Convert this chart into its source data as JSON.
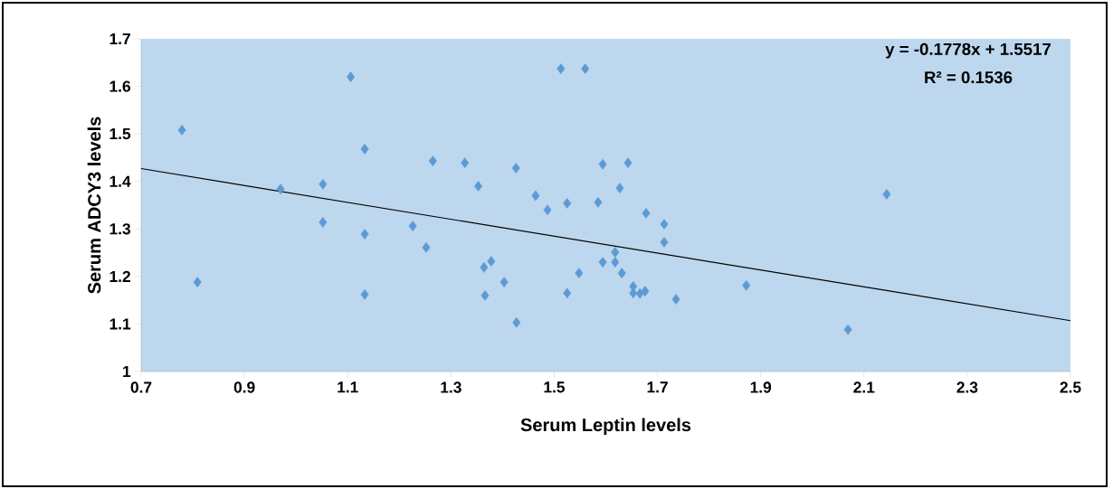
{
  "chart_data": {
    "type": "scatter",
    "xlabel": "Serum Leptin levels",
    "ylabel": "Serum ADCY3  levels",
    "xlim": [
      0.7,
      2.5
    ],
    "xticks": [
      0.7,
      0.9,
      1.1,
      1.3,
      1.5,
      1.7,
      1.9,
      2.1,
      2.3,
      2.5
    ],
    "ylim": [
      1,
      1.7
    ],
    "yticks": [
      1,
      1.1,
      1.2,
      1.3,
      1.4,
      1.5,
      1.6,
      1.7
    ],
    "annotations": [
      "y = -0.1778x + 1.5517",
      "R² = 0.1536"
    ],
    "series": [
      {
        "color": "#5b9bd5",
        "marker": "diamond",
        "x": [
          0.779,
          0.809,
          0.97,
          1.052,
          1.052,
          1.106,
          1.133,
          1.133,
          1.133,
          1.226,
          1.252,
          1.265,
          1.327,
          1.353,
          1.364,
          1.378,
          1.366,
          1.403,
          1.426,
          1.427,
          1.464,
          1.487,
          1.513,
          1.525,
          1.525,
          1.548,
          1.56,
          1.585,
          1.594,
          1.594,
          1.643,
          1.627,
          1.618,
          1.618,
          1.631,
          1.678,
          1.713,
          1.713,
          1.653,
          1.653,
          1.666,
          1.676,
          1.736,
          1.872,
          2.069,
          2.144
        ],
        "values": [
          1.508,
          1.188,
          1.384,
          1.394,
          1.314,
          1.62,
          1.468,
          1.289,
          1.162,
          1.306,
          1.261,
          1.443,
          1.439,
          1.39,
          1.219,
          1.232,
          1.16,
          1.188,
          1.428,
          1.103,
          1.37,
          1.34,
          1.637,
          1.354,
          1.165,
          1.207,
          1.637,
          1.356,
          1.436,
          1.23,
          1.439,
          1.386,
          1.251,
          1.23,
          1.207,
          1.333,
          1.31,
          1.272,
          1.179,
          1.165,
          1.164,
          1.169,
          1.152,
          1.181,
          1.088,
          1.373
        ]
      },
      {
        "type": "line",
        "color": "#000000",
        "x": [
          0.7,
          2.5
        ],
        "values": [
          1.427,
          1.107
        ]
      }
    ]
  }
}
